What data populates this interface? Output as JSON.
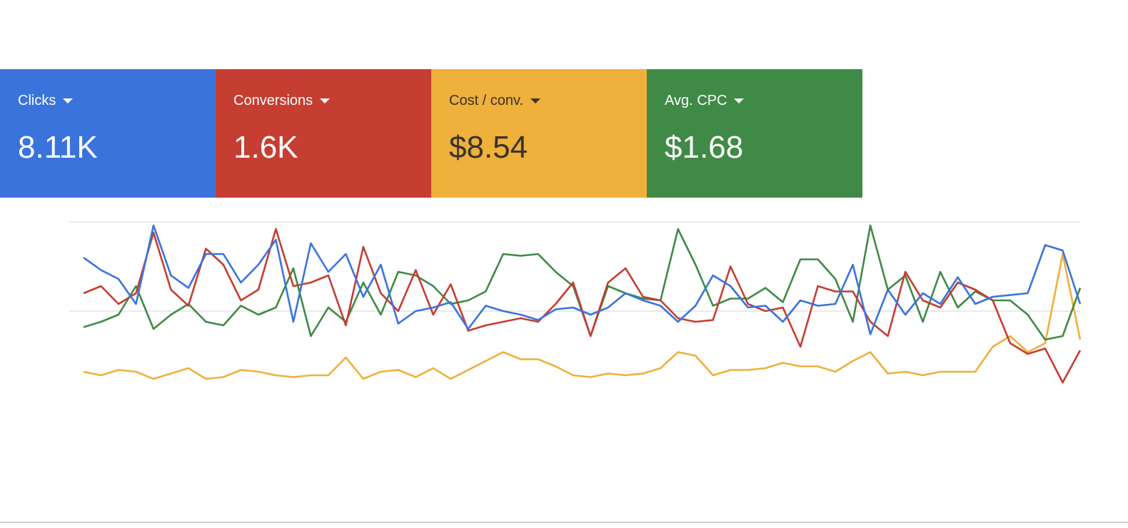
{
  "cards": [
    {
      "value": "8.11K"
    },
    {
      "value": "1.6K"
    },
    {
      "value": "$8.54"
    },
    {
      "value": "$1.68"
    }
  ],
  "chart_data": {
    "type": "line",
    "ylim": [
      0,
      100
    ],
    "yticks": [
      50,
      100
    ],
    "grid": true,
    "series": [
      {
        "name": "Clicks",
        "color": "#3b73dd",
        "values": [
          80,
          73,
          68,
          54,
          98,
          70,
          63,
          82,
          82,
          66,
          76,
          90,
          44,
          88,
          72,
          82,
          58,
          76,
          43,
          50,
          52,
          55,
          40,
          53,
          50,
          48,
          45,
          51,
          52,
          48,
          52,
          60,
          56,
          53,
          44,
          53,
          70,
          64,
          52,
          53,
          44,
          56,
          53,
          54,
          76,
          37,
          62,
          48,
          60,
          54,
          69,
          54,
          58,
          59,
          60,
          87,
          84,
          54
        ]
      },
      {
        "name": "Conversions",
        "color": "#c63d31",
        "values": [
          60,
          64,
          54,
          60,
          94,
          62,
          53,
          85,
          76,
          56,
          62,
          96,
          64,
          66,
          70,
          42,
          86,
          60,
          50,
          73,
          48,
          65,
          39,
          42,
          44,
          46,
          44,
          54,
          66,
          36,
          66,
          74,
          58,
          56,
          46,
          44,
          45,
          75,
          54,
          50,
          52,
          30,
          64,
          61,
          61,
          44,
          36,
          72,
          56,
          52,
          66,
          62,
          56,
          32,
          26,
          29,
          10,
          28
        ]
      },
      {
        "name": "Cost / conv.",
        "color": "#efb03c",
        "values": [
          16,
          14,
          17,
          16,
          12,
          15,
          18,
          12,
          13,
          17,
          16,
          14,
          13,
          14,
          14,
          24,
          12,
          16,
          17,
          13,
          18,
          12,
          17,
          22,
          27,
          23,
          23,
          19,
          14,
          13,
          15,
          14,
          15,
          18,
          27,
          25,
          14,
          17,
          17,
          18,
          21,
          19,
          19,
          16,
          22,
          27,
          15,
          16,
          14,
          16,
          16,
          16,
          30,
          36,
          27,
          32,
          82,
          34
        ]
      },
      {
        "name": "Avg. CPC",
        "color": "#3f8a47",
        "values": [
          41,
          44,
          48,
          64,
          40,
          48,
          54,
          44,
          42,
          53,
          48,
          52,
          74,
          36,
          52,
          44,
          66,
          48,
          72,
          70,
          64,
          54,
          56,
          61,
          82,
          81,
          82,
          72,
          64,
          36,
          64,
          60,
          57,
          56,
          96,
          76,
          53,
          57,
          57,
          63,
          55,
          79,
          79,
          68,
          44,
          98,
          62,
          70,
          44,
          72,
          52,
          61,
          56,
          56,
          48,
          34,
          36,
          63
        ]
      }
    ]
  }
}
